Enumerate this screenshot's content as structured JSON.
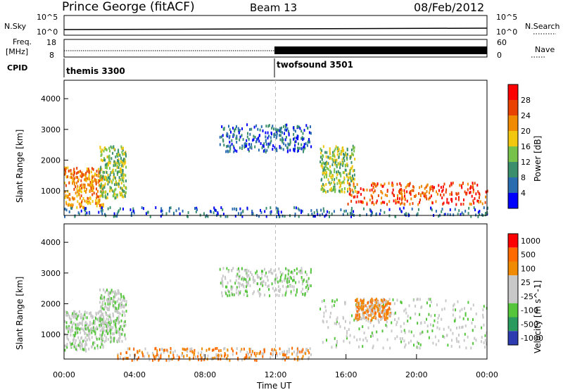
{
  "header": {
    "site": "Prince George (fitACF)",
    "beam": "Beam 13",
    "date": "08/Feb/2012"
  },
  "strip_panels": {
    "nsky_label": "N.Sky",
    "nsky_ticks": [
      "10^5",
      "10^0"
    ],
    "nsearch_label": "N.Search",
    "freq_label_1": "Freq.",
    "freq_label_2": "[MHz]",
    "freq_ticks": [
      "18",
      "8"
    ],
    "nave_ticks": [
      "60",
      "0"
    ],
    "nave_label": "Nave",
    "cpid_label": "CPID",
    "cpid_1": "themis 3300",
    "cpid_2": "twofsound 3501"
  },
  "chart_data": [
    {
      "type": "heatmap",
      "panel": "power",
      "ylabel": "Slant Range [km]",
      "yticks": [
        "1000",
        "2000",
        "3000",
        "4000"
      ],
      "ylim": [
        200,
        4600
      ],
      "xlim": [
        0,
        24
      ],
      "colorbar_label": "Power [dB]",
      "colorbar_ticks": [
        "4",
        "8",
        "12",
        "16",
        "20",
        "24",
        "28"
      ],
      "colors": [
        "#0000ff",
        "#2a6cb0",
        "#3b8f6c",
        "#77c24a",
        "#f2c70f",
        "#f08a00",
        "#e84100",
        "#ff0000"
      ],
      "regions": [
        {
          "t": [
            0.0,
            2.2
          ],
          "r": [
            500,
            1800
          ],
          "level": 5
        },
        {
          "t": [
            2.0,
            3.5
          ],
          "r": [
            800,
            2500
          ],
          "level": 3
        },
        {
          "t": [
            8.8,
            14.0
          ],
          "r": [
            2300,
            3200
          ],
          "level": 1
        },
        {
          "t": [
            14.5,
            16.5
          ],
          "r": [
            1000,
            2500
          ],
          "level": 3
        },
        {
          "t": [
            16.0,
            24.0
          ],
          "r": [
            600,
            1300
          ],
          "level": 6
        },
        {
          "t": [
            0.0,
            24.0
          ],
          "r": [
            200,
            500
          ],
          "level": 1
        }
      ]
    },
    {
      "type": "heatmap",
      "panel": "velocity",
      "xlabel": "Time UT",
      "ylabel": "Slant Range [km]",
      "yticks": [
        "1000",
        "2000",
        "3000",
        "4000"
      ],
      "xticks": [
        "00:00",
        "04:00",
        "08:00",
        "12:00",
        "16:00",
        "20:00",
        "00:00"
      ],
      "ylim": [
        200,
        4600
      ],
      "xlim": [
        0,
        24
      ],
      "colorbar_label": "Velocity [m s^-1]",
      "colorbar_ticks": [
        "1000",
        "500",
        "100",
        "25",
        "-25",
        "-100",
        "-500",
        "-1000"
      ],
      "colors": [
        "#2c3cb0",
        "#2a9a5e",
        "#55c63c",
        "#c8c8c8",
        "#c8c8c8",
        "#f08a00",
        "#ff6a00",
        "#ff0000"
      ],
      "regions": [
        {
          "t": [
            0.0,
            2.2
          ],
          "r": [
            500,
            1800
          ],
          "level": 3
        },
        {
          "t": [
            2.0,
            3.5
          ],
          "r": [
            800,
            2500
          ],
          "level": 3
        },
        {
          "t": [
            8.8,
            14.0
          ],
          "r": [
            2300,
            3200
          ],
          "level": 3
        },
        {
          "t": [
            14.5,
            24.0
          ],
          "r": [
            600,
            2200
          ],
          "level": 3
        },
        {
          "t": [
            16.5,
            18.5
          ],
          "r": [
            1500,
            2200
          ],
          "level": 5
        },
        {
          "t": [
            3.0,
            14.0
          ],
          "r": [
            200,
            600
          ],
          "level": 5
        }
      ]
    }
  ]
}
